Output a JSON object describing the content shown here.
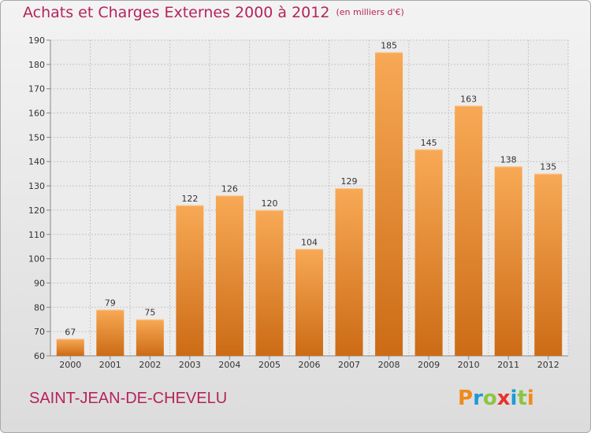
{
  "chart_data": {
    "type": "bar",
    "title": "Achats et Charges Externes 2000 à 2012",
    "subtitle": "(en milliers d'€)",
    "categories": [
      "2000",
      "2001",
      "2002",
      "2003",
      "2004",
      "2005",
      "2006",
      "2007",
      "2008",
      "2009",
      "2010",
      "2011",
      "2012"
    ],
    "values": [
      67,
      79,
      75,
      122,
      126,
      120,
      104,
      129,
      185,
      145,
      163,
      138,
      135
    ],
    "ylim": [
      60,
      190
    ],
    "yticks": [
      60,
      70,
      80,
      90,
      100,
      110,
      120,
      130,
      140,
      150,
      160,
      170,
      180,
      190
    ],
    "xlabel": "",
    "ylabel": "",
    "grid": true,
    "bar_color_top": "#f8a955",
    "bar_color_bottom": "#cc6b16"
  },
  "footer": {
    "commune": "SAINT-JEAN-DE-CHEVELU",
    "logo_text": "Proxiti",
    "logo_colors": [
      "#f08a1c",
      "#1e9ad6",
      "#8cc63f",
      "#e8312f",
      "#1e9ad6",
      "#8cc63f",
      "#f08a1c"
    ]
  }
}
